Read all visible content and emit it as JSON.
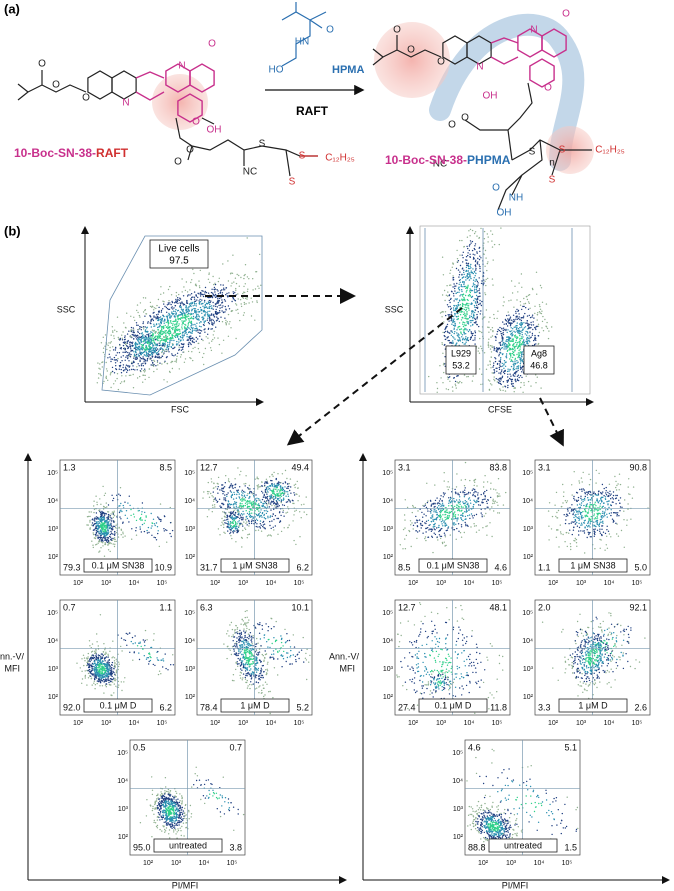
{
  "panel_a": {
    "label": "(a)",
    "reagent": "HPMA",
    "condition": "RAFT",
    "reactant": {
      "drug": "10-Boc-SN-38",
      "sep": "-",
      "agent": "RAFT"
    },
    "product": {
      "drug": "10-Boc-SN-38",
      "sep": "-",
      "agent": "PHPMA"
    },
    "reactant_atoms": [
      "O",
      "O",
      "O",
      "N",
      "N",
      "O",
      "O",
      "OH",
      "O",
      "O",
      "S",
      "S",
      "S",
      "NC",
      "C₁₂H₂₅"
    ],
    "reagent_atoms": [
      "O",
      "HN",
      "HO"
    ],
    "product_atoms": [
      "O",
      "O",
      "O",
      "N",
      "N",
      "O",
      "O",
      "OH",
      "O",
      "O",
      "NC",
      "n",
      "O",
      "NH",
      "OH",
      "S",
      "S",
      "S",
      "C₁₂H₂₅"
    ]
  },
  "panel_b": {
    "label": "(b)",
    "gating": [
      {
        "x_label": "FSC",
        "y_label": "SSC",
        "gate": "Live cells",
        "value": "97.5"
      },
      {
        "x_label": "CFSE",
        "y_label": "SSC",
        "gates": [
          {
            "name": "L929",
            "value": "53.2"
          },
          {
            "name": "Ag8",
            "value": "46.8"
          }
        ]
      }
    ],
    "ticks": [
      "10²",
      "10³",
      "10⁴",
      "10⁵"
    ],
    "y_label": [
      "Ann.-V/",
      "MFI"
    ],
    "x_label": "PI/MFI",
    "groups": [
      {
        "plots": [
          {
            "quadrants": [
              "1.3",
              "8.5",
              "79.3",
              "10.9"
            ],
            "label": "0.1 μM SN38"
          },
          {
            "quadrants": [
              "12.7",
              "49.4",
              "31.7",
              "6.2"
            ],
            "label": "1 μM SN38"
          },
          {
            "quadrants": [
              "0.7",
              "1.1",
              "92.0",
              "6.2"
            ],
            "label": "0.1 μM D"
          },
          {
            "quadrants": [
              "6.3",
              "10.1",
              "78.4",
              "5.2"
            ],
            "label": "1 μM D"
          },
          {
            "quadrants": [
              "0.5",
              "0.7",
              "95.0",
              "3.8"
            ],
            "label": "untreated"
          }
        ]
      },
      {
        "plots": [
          {
            "quadrants": [
              "3.1",
              "83.8",
              "8.5",
              "4.6"
            ],
            "label": "0.1 μM SN38"
          },
          {
            "quadrants": [
              "3.1",
              "90.8",
              "1.1",
              "5.0"
            ],
            "label": "1 μM SN38"
          },
          {
            "quadrants": [
              "12.7",
              "48.1",
              "27.4",
              "11.8"
            ],
            "label": "0.1 μM D"
          },
          {
            "quadrants": [
              "2.0",
              "92.1",
              "3.3",
              "2.6"
            ],
            "label": "1 μM D"
          },
          {
            "quadrants": [
              "4.6",
              "5.1",
              "88.8",
              "1.5"
            ],
            "label": "untreated"
          }
        ]
      }
    ]
  }
}
